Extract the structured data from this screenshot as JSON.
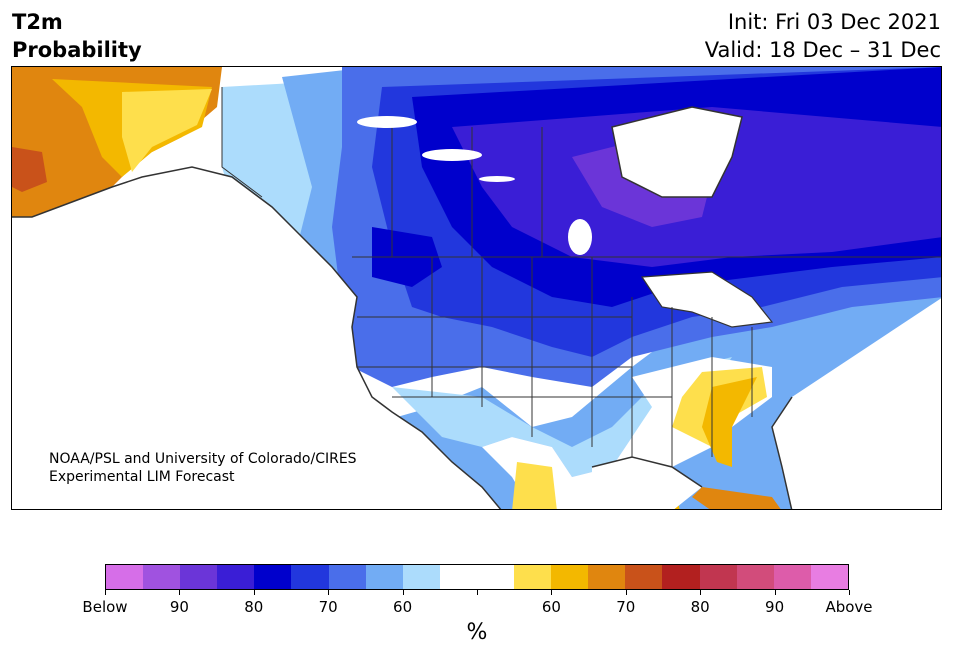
{
  "title": {
    "line1": "T2m",
    "line2": "Probability"
  },
  "init": {
    "line1": "Init: Fri 03 Dec 2021",
    "line2": "Valid: 18 Dec – 31 Dec"
  },
  "credit": {
    "line1": "NOAA/PSL and University of Colorado/CIRES",
    "line2": "Experimental LIM Forecast"
  },
  "colorbar": {
    "colors": [
      "#d66ee8",
      "#a052e0",
      "#6b35d8",
      "#3a1ed6",
      "#0000cc",
      "#2237dd",
      "#4a6eea",
      "#72acf4",
      "#acdcfc",
      "#ffffff",
      "#ffffff",
      "#fedf4c",
      "#f3b800",
      "#e0860f",
      "#c9521a",
      "#b2201f",
      "#c13650",
      "#d24c7b",
      "#dd5caa",
      "#e87de2"
    ],
    "tick_labels": [
      "Below",
      "90",
      "80",
      "70",
      "60",
      "",
      "60",
      "70",
      "80",
      "90",
      "Above"
    ],
    "unit": "%"
  },
  "map": {
    "region": "North America",
    "legend_meaning": "Probability of below / above normal 2-m temperature"
  }
}
